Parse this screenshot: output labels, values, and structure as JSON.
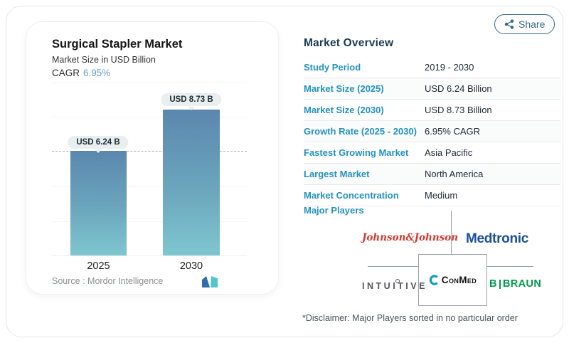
{
  "share": {
    "label": "Share"
  },
  "chart_data": {
    "type": "bar",
    "title": "Surgical Stapler Market",
    "subtitle": "Market Size in USD Billion",
    "cagr_label": "CAGR",
    "cagr": "6.95%",
    "categories": [
      "2025",
      "2030"
    ],
    "values": [
      6.24,
      8.73
    ],
    "value_labels": [
      "USD 6.24 B",
      "USD 8.73 B"
    ],
    "unit": "USD Billion",
    "ylim": [
      0,
      9.6
    ],
    "grid": "faint-horizontal",
    "legend": "none",
    "reference_line": {
      "y": 6.24,
      "style": "dashed"
    },
    "source": "Mordor Intelligence"
  },
  "left_card": {
    "source_label": "Source :",
    "source_value": "Mordor Intelligence"
  },
  "overview": {
    "heading": "Market Overview",
    "rows": [
      {
        "label": "Study Period",
        "value": "2019 - 2030"
      },
      {
        "label": "Market Size (2025)",
        "value": "USD 6.24 Billion"
      },
      {
        "label": "Market Size (2030)",
        "value": "USD 8.73 Billion"
      },
      {
        "label": "Growth Rate (2025 - 2030)",
        "value": "6.95% CAGR"
      },
      {
        "label": "Fastest Growing Market",
        "value": "Asia Pacific"
      },
      {
        "label": "Largest Market",
        "value": "North America"
      },
      {
        "label": "Market Concentration",
        "value": "Medium"
      }
    ],
    "major_players_label": "Major Players",
    "players": {
      "jnj": "Johnson&Johnson",
      "medtronic": "Medtronic",
      "intuitive": "INTUITIVE",
      "conmed": "ConMed",
      "bbraun_b": "B",
      "bbraun_braun": "BRAUN"
    },
    "disclaimer": "*Disclaimer: Major Players sorted in no particular order"
  },
  "colors": {
    "accent_blue": "#2492c0",
    "heading_navy": "#1b3a55",
    "cagr_blue": "#63a0c6",
    "bar_gradient_top": "#5b87ae",
    "bar_gradient_bottom": "#7fc6cf",
    "share_teal": "#35688c",
    "jnj_red": "#d4372e",
    "medtronic_navy": "#1a4f9c",
    "bbraun_green": "#009a4e",
    "conmed_teal": "#169bbf",
    "mordor_blue": "#2f6ea6",
    "mordor_teal": "#52c5cf"
  }
}
